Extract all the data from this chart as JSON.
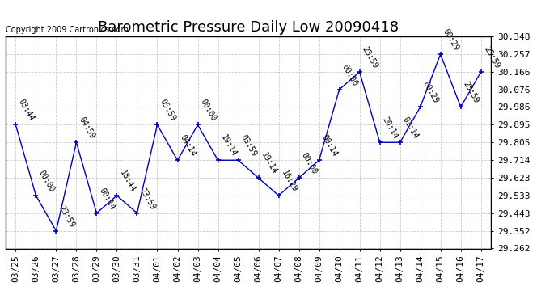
{
  "title": "Barometric Pressure Daily Low 20090418",
  "copyright": "Copyright 2009 Cartronics.com",
  "x_labels": [
    "03/25",
    "03/26",
    "03/27",
    "03/28",
    "03/29",
    "03/30",
    "03/31",
    "04/01",
    "04/02",
    "04/03",
    "04/04",
    "04/05",
    "04/06",
    "04/07",
    "04/08",
    "04/09",
    "04/10",
    "04/11",
    "04/12",
    "04/13",
    "04/14",
    "04/15",
    "04/16",
    "04/17"
  ],
  "y_values": [
    29.895,
    29.533,
    29.352,
    29.805,
    29.443,
    29.533,
    29.443,
    29.895,
    29.714,
    29.895,
    29.714,
    29.714,
    29.623,
    29.533,
    29.623,
    29.714,
    30.076,
    30.166,
    29.805,
    29.805,
    29.986,
    30.257,
    29.986,
    30.166
  ],
  "point_labels": [
    "03:44",
    "00:00",
    "23:59",
    "04:59",
    "00:14",
    "18:44",
    "23:59",
    "05:59",
    "04:14",
    "00:00",
    "19:14",
    "03:59",
    "19:14",
    "16:29",
    "00:00",
    "00:14",
    "00:00",
    "23:59",
    "20:14",
    "01:14",
    "00:29",
    "00:29",
    "23:59",
    "23:59"
  ],
  "line_color": "#0000bb",
  "marker_color": "#0000bb",
  "background_color": "#ffffff",
  "grid_color": "#cccccc",
  "ylim_min": 29.262,
  "ylim_max": 30.348,
  "yticks": [
    29.262,
    29.352,
    29.443,
    29.533,
    29.623,
    29.714,
    29.805,
    29.895,
    29.986,
    30.076,
    30.166,
    30.257,
    30.348
  ],
  "title_fontsize": 13,
  "label_fontsize": 7,
  "tick_fontsize": 8,
  "copyright_fontsize": 7
}
